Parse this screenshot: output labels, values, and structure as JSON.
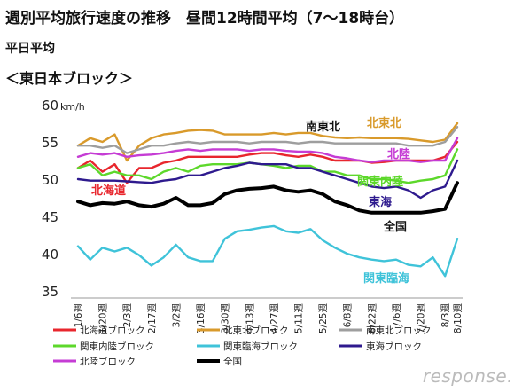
{
  "title": "週別平均旅行速度の推移　昼間12時間平均（7～18時台）",
  "subtitle": "平日平均",
  "region": "＜東日本ブロック＞",
  "watermark": "response.",
  "chart_data": {
    "type": "line",
    "ylabel": "km/h",
    "ylim": [
      35,
      60
    ],
    "yticks": [
      35,
      40,
      45,
      50,
      55,
      60
    ],
    "grid": false,
    "legend": "bottom",
    "categories": [
      "1/6週",
      "1/13週",
      "1/20週",
      "1/27週",
      "2/3週",
      "2/10週",
      "2/17週",
      "2/24週",
      "3/2週",
      "3/9週",
      "3/16週",
      "3/23週",
      "3/30週",
      "4/6週",
      "4/13週",
      "4/20週",
      "4/27週",
      "5/4週",
      "5/11週",
      "5/18週",
      "5/25週",
      "6/1週",
      "6/8週",
      "6/15週",
      "6/22週",
      "6/29週",
      "7/6週",
      "7/13週",
      "7/20週",
      "7/27週",
      "8/3週",
      "8/10週"
    ],
    "xticklabels": [
      "1/6週",
      "",
      "1/20週",
      "",
      "2/3週",
      "",
      "2/17週",
      "",
      "3/2週",
      "",
      "3/16週",
      "",
      "3/30週",
      "",
      "4/13週",
      "",
      "4/27週",
      "",
      "5/11週",
      "",
      "5/25週",
      "",
      "6/8週",
      "",
      "6/22週",
      "",
      "7/6週",
      "",
      "7/20週",
      "",
      "8/3週",
      "8/10週"
    ],
    "series": [
      {
        "name": "北海道ブロック",
        "color": "#e8262d",
        "values": [
          51.5,
          52.5,
          51.0,
          52.0,
          49.5,
          51.5,
          51.5,
          52.2,
          52.5,
          53.0,
          53.0,
          53.0,
          53.0,
          53.0,
          53.3,
          53.5,
          53.5,
          53.2,
          53.0,
          53.3,
          53.0,
          52.5,
          52.5,
          52.5,
          52.2,
          52.3,
          52.5,
          52.5,
          52.5,
          52.5,
          53.0,
          55.0
        ]
      },
      {
        "name": "北東北ブロック",
        "color": "#d99a2b",
        "values": [
          54.5,
          55.5,
          55.0,
          56.0,
          52.5,
          54.5,
          55.5,
          56.0,
          56.2,
          56.5,
          56.6,
          56.5,
          56.0,
          56.0,
          56.0,
          56.0,
          56.2,
          56.0,
          56.2,
          56.2,
          55.8,
          55.6,
          55.5,
          55.6,
          55.5,
          55.5,
          55.5,
          55.4,
          55.2,
          55.0,
          55.3,
          57.5
        ]
      },
      {
        "name": "南東北ブロック",
        "color": "#9e9e9e",
        "values": [
          54.5,
          54.5,
          54.2,
          54.5,
          53.5,
          54.0,
          54.5,
          54.5,
          54.8,
          55.0,
          54.8,
          55.0,
          55.0,
          55.0,
          54.8,
          55.0,
          55.0,
          55.0,
          54.8,
          55.0,
          55.0,
          54.8,
          54.8,
          54.8,
          54.8,
          54.8,
          54.8,
          54.5,
          54.5,
          54.5,
          55.0,
          57.0
        ]
      },
      {
        "name": "関東内陸ブロック",
        "color": "#5dd82b",
        "values": [
          51.5,
          52.0,
          50.5,
          51.0,
          50.5,
          50.5,
          50.0,
          51.0,
          51.5,
          51.0,
          51.8,
          52.0,
          52.0,
          52.0,
          52.2,
          52.0,
          51.8,
          51.5,
          51.8,
          51.8,
          51.0,
          51.0,
          50.5,
          50.5,
          50.0,
          50.0,
          49.8,
          49.5,
          49.8,
          50.0,
          50.5,
          54.0
        ]
      },
      {
        "name": "関東臨海ブロック",
        "color": "#3fc3d9",
        "values": [
          41.0,
          39.2,
          40.8,
          40.3,
          40.8,
          39.8,
          38.4,
          39.5,
          41.2,
          39.5,
          39.0,
          39.0,
          42.0,
          43.0,
          43.2,
          43.5,
          43.7,
          43.0,
          42.8,
          43.3,
          41.8,
          40.8,
          40.0,
          39.5,
          39.2,
          39.0,
          39.2,
          38.5,
          38.3,
          39.5,
          37.0,
          42.0
        ]
      },
      {
        "name": "東海ブロック",
        "color": "#2e1a8e",
        "values": [
          50.0,
          49.8,
          49.8,
          49.8,
          49.7,
          49.6,
          49.5,
          49.8,
          50.0,
          50.5,
          50.5,
          51.0,
          51.5,
          51.8,
          52.2,
          52.0,
          52.0,
          52.0,
          51.5,
          51.5,
          51.0,
          50.5,
          50.0,
          49.5,
          49.0,
          48.8,
          49.0,
          48.5,
          47.5,
          48.5,
          49.0,
          52.5
        ]
      },
      {
        "name": "北陸ブロック",
        "color": "#c53cd4",
        "values": [
          53.0,
          53.5,
          53.3,
          53.5,
          53.0,
          53.2,
          53.3,
          53.5,
          53.8,
          54.0,
          53.8,
          54.0,
          54.0,
          54.0,
          53.8,
          54.0,
          54.0,
          53.8,
          53.7,
          53.7,
          53.5,
          53.0,
          52.8,
          52.5,
          52.3,
          52.5,
          52.5,
          52.5,
          52.3,
          52.5,
          52.5,
          55.5
        ]
      },
      {
        "name": "全国",
        "color": "#000000",
        "values": [
          47.0,
          46.5,
          46.8,
          46.7,
          47.0,
          46.5,
          46.3,
          46.7,
          47.5,
          46.5,
          46.5,
          46.8,
          48.0,
          48.5,
          48.7,
          48.8,
          49.0,
          48.5,
          48.3,
          48.5,
          48.0,
          47.0,
          46.5,
          45.8,
          45.5,
          45.5,
          45.5,
          45.5,
          45.5,
          45.7,
          46.0,
          49.5
        ]
      }
    ],
    "annotations": [
      "南東北",
      "北東北",
      "北陸",
      "北海道",
      "関東内陸",
      "東海",
      "全国",
      "関東臨海"
    ]
  }
}
